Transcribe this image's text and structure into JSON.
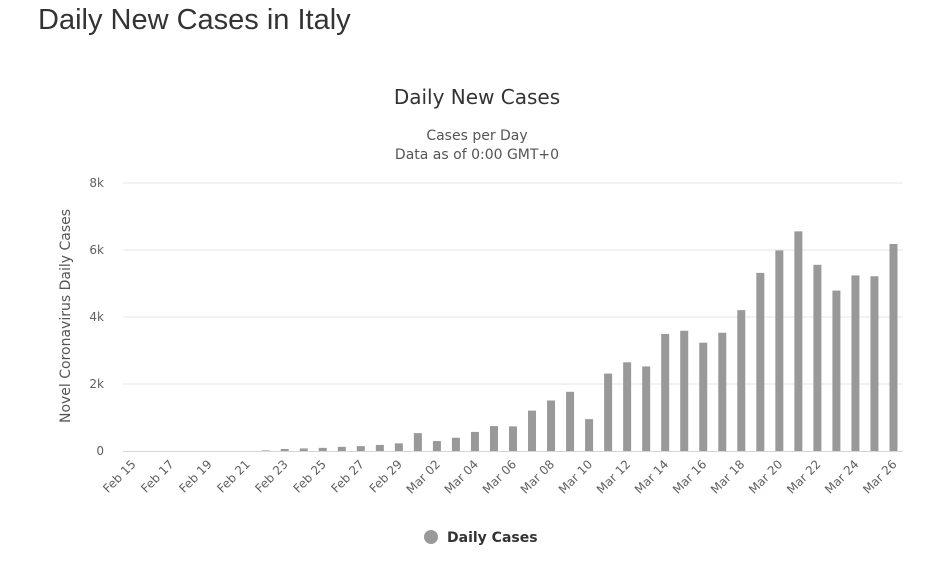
{
  "page": {
    "title": "Daily New Cases in Italy"
  },
  "chart_data": {
    "type": "bar",
    "title": "Daily New Cases",
    "subtitle": [
      "Cases per Day",
      "Data as of 0:00 GMT+0"
    ],
    "xlabel": "",
    "ylabel": "Novel Coronavirus Daily Cases",
    "ylim": [
      0,
      8000
    ],
    "yticks": [
      0,
      2000,
      4000,
      6000,
      8000
    ],
    "ytick_labels": [
      "0",
      "2k",
      "4k",
      "6k",
      "8k"
    ],
    "grid": true,
    "legend_position": "bottom-center",
    "categories": [
      "Feb 15",
      "Feb 16",
      "Feb 17",
      "Feb 18",
      "Feb 19",
      "Feb 20",
      "Feb 21",
      "Feb 22",
      "Feb 23",
      "Feb 24",
      "Feb 25",
      "Feb 26",
      "Feb 27",
      "Feb 28",
      "Feb 29",
      "Mar 01",
      "Mar 02",
      "Mar 03",
      "Mar 04",
      "Mar 05",
      "Mar 06",
      "Mar 07",
      "Mar 08",
      "Mar 09",
      "Mar 10",
      "Mar 11",
      "Mar 12",
      "Mar 13",
      "Mar 14",
      "Mar 15",
      "Mar 16",
      "Mar 17",
      "Mar 18",
      "Mar 19",
      "Mar 20",
      "Mar 21",
      "Mar 22",
      "Mar 23",
      "Mar 24",
      "Mar 25",
      "Mar 26"
    ],
    "visible_tick_labels": [
      "Feb 15",
      "Feb 17",
      "Feb 19",
      "Feb 21",
      "Feb 23",
      "Feb 25",
      "Feb 27",
      "Feb 29",
      "Mar 02",
      "Mar 04",
      "Mar 06",
      "Mar 08",
      "Mar 10",
      "Mar 12",
      "Mar 14",
      "Mar 16",
      "Mar 18",
      "Mar 20",
      "Mar 22",
      "Mar 24",
      "Mar 26"
    ],
    "series": [
      {
        "name": "Daily Cases",
        "color": "#999999",
        "values": [
          0,
          0,
          0,
          0,
          0,
          0,
          0,
          17,
          59,
          76,
          93,
          124,
          145,
          182,
          228,
          533,
          296,
          396,
          570,
          744,
          735,
          1206,
          1508,
          1767,
          952,
          2311,
          2648,
          2524,
          3495,
          3589,
          3233,
          3530,
          4204,
          5317,
          5986,
          6557,
          5558,
          4789,
          5241,
          5217,
          6180
        ]
      }
    ]
  }
}
